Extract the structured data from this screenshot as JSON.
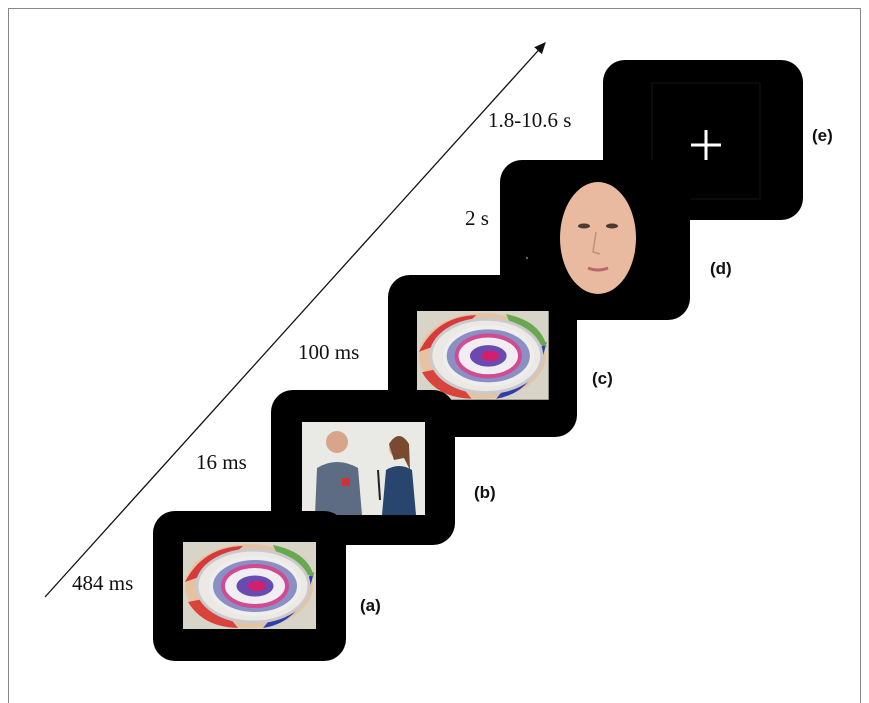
{
  "frames": [
    {
      "label": "(a)",
      "duration": "484 ms"
    },
    {
      "label": "(b)",
      "duration": "16 ms"
    },
    {
      "label": "(c)",
      "duration": "100 ms"
    },
    {
      "label": "(d)",
      "duration": "2 s"
    },
    {
      "label": "(e)",
      "duration": "1.8-10.6 s"
    }
  ]
}
